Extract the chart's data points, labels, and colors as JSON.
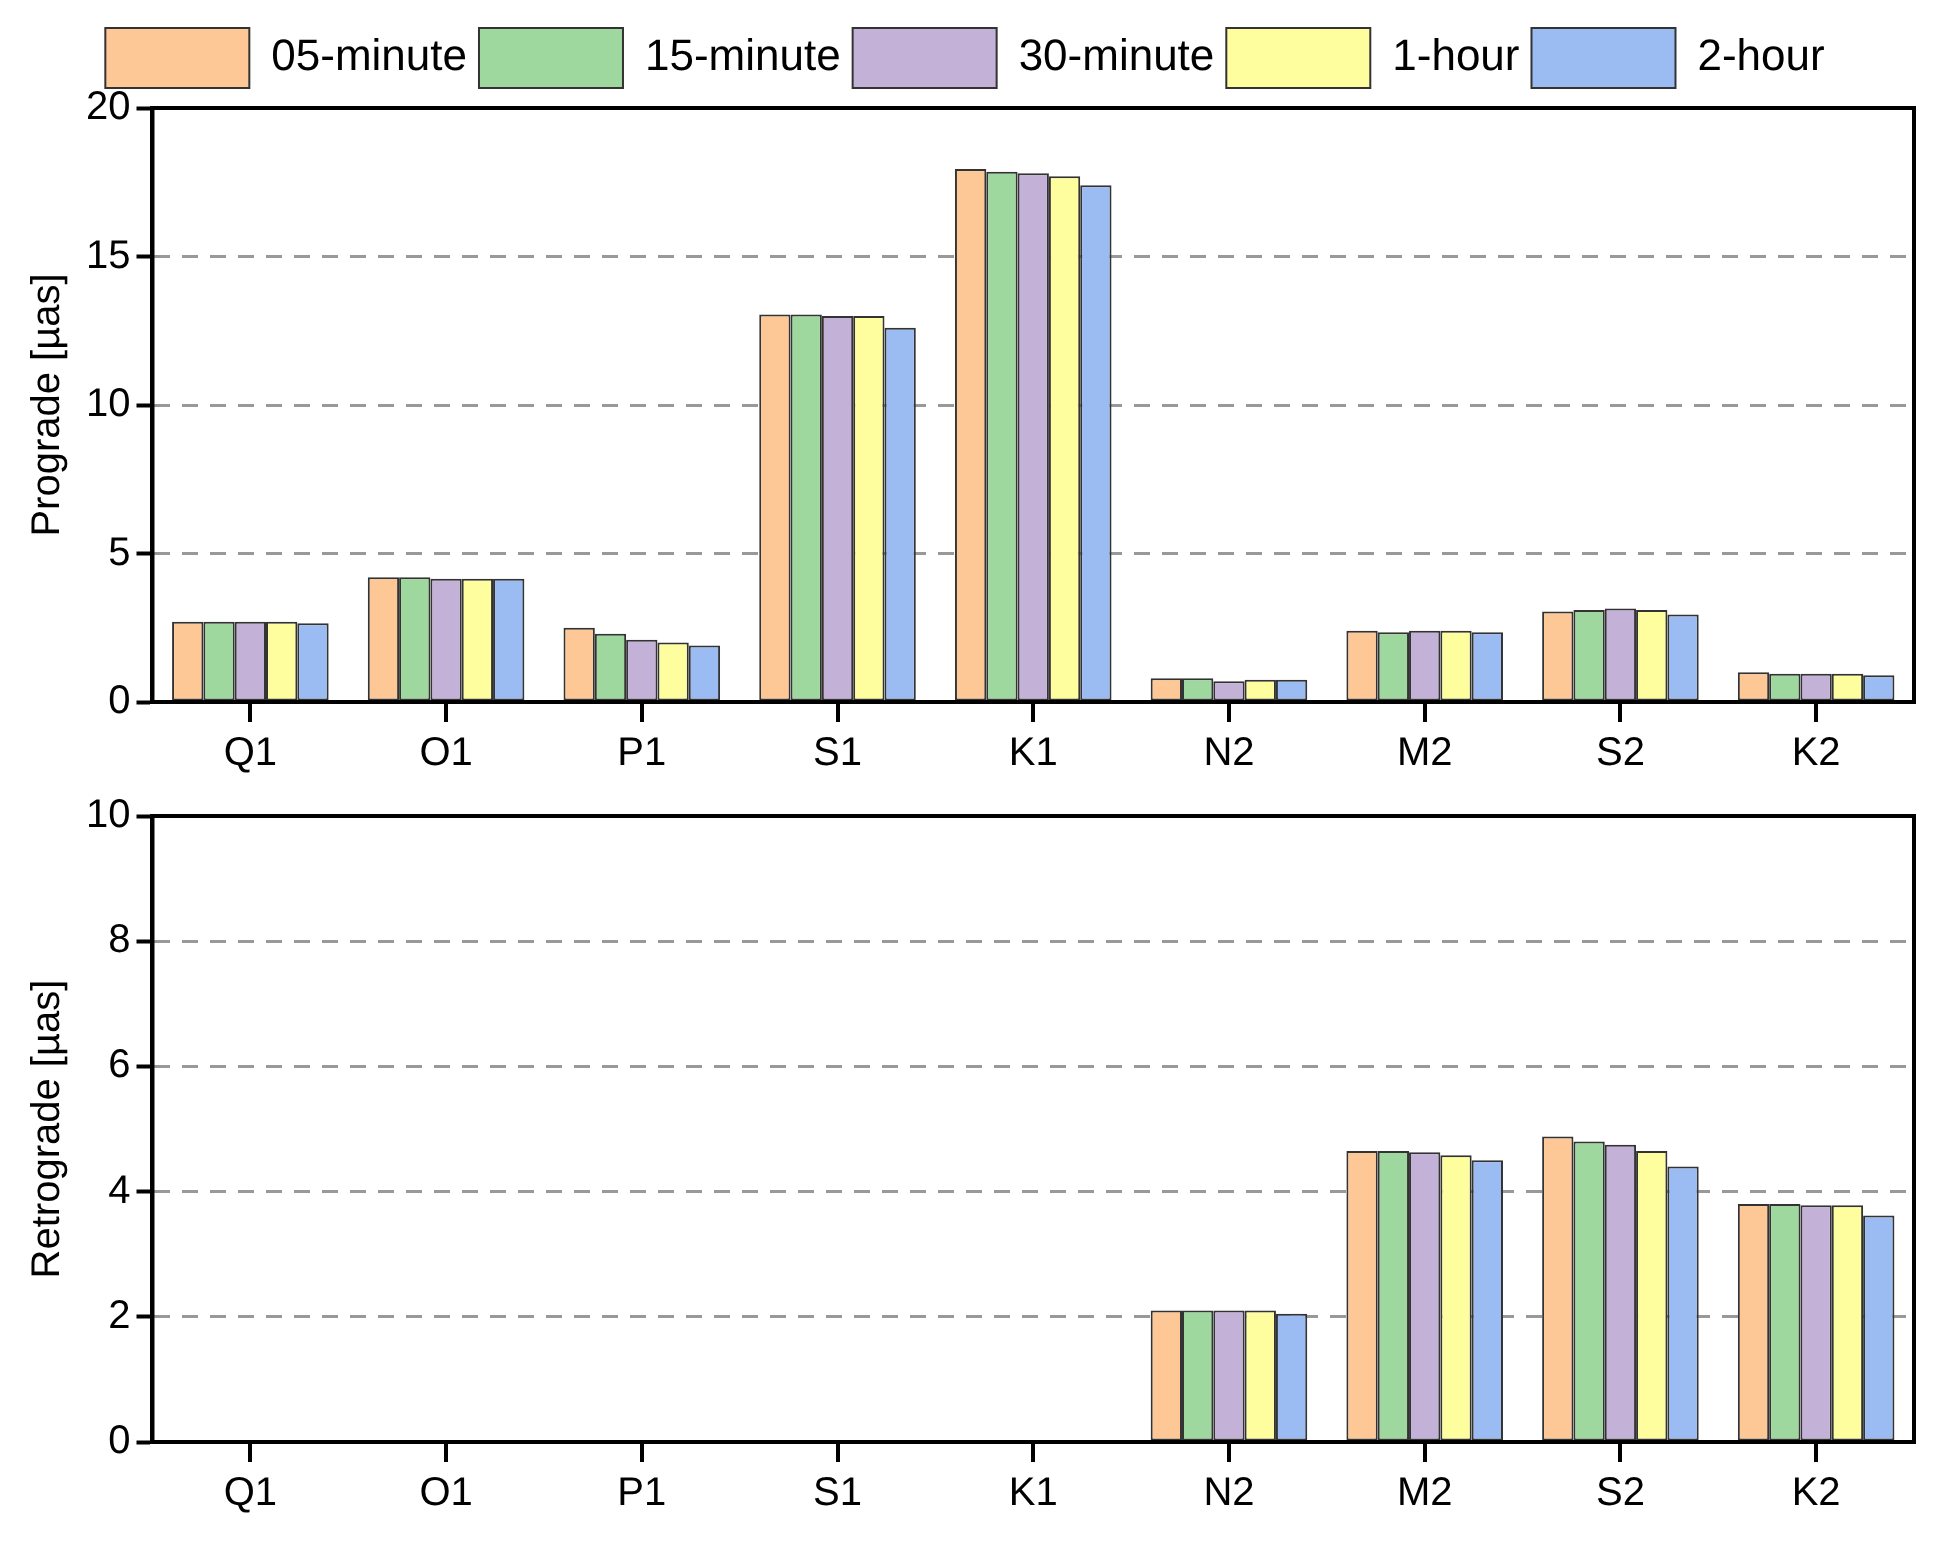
{
  "chart_data": [
    {
      "type": "bar",
      "ylabel": "Prograde [µas]",
      "categories": [
        "Q1",
        "O1",
        "P1",
        "S1",
        "K1",
        "N2",
        "M2",
        "S2",
        "K2"
      ],
      "ylim": [
        0,
        20
      ],
      "yticks": [
        0,
        5,
        10,
        15,
        20
      ],
      "grid": "y",
      "legend": "top",
      "series": [
        {
          "name": "05-minute",
          "color": "#fdc896",
          "values": [
            2.7,
            4.2,
            2.5,
            13.05,
            17.95,
            0.8,
            2.4,
            3.05,
            1.0
          ]
        },
        {
          "name": "15-minute",
          "color": "#9ed89e",
          "values": [
            2.7,
            4.2,
            2.3,
            13.05,
            17.85,
            0.8,
            2.35,
            3.1,
            0.95
          ]
        },
        {
          "name": "30-minute",
          "color": "#c3b1d8",
          "values": [
            2.7,
            4.15,
            2.1,
            13.0,
            17.8,
            0.7,
            2.4,
            3.15,
            0.95
          ]
        },
        {
          "name": "1-hour",
          "color": "#fefe9e",
          "values": [
            2.7,
            4.15,
            2.0,
            13.0,
            17.7,
            0.75,
            2.4,
            3.1,
            0.95
          ]
        },
        {
          "name": "2-hour",
          "color": "#9bbbf3",
          "values": [
            2.65,
            4.15,
            1.9,
            12.6,
            17.4,
            0.75,
            2.35,
            2.95,
            0.9
          ]
        }
      ]
    },
    {
      "type": "bar",
      "ylabel": "Retrograde [µas]",
      "categories": [
        "Q1",
        "O1",
        "P1",
        "S1",
        "K1",
        "N2",
        "M2",
        "S2",
        "K2"
      ],
      "ylim": [
        0,
        10
      ],
      "yticks": [
        0,
        2,
        4,
        6,
        8,
        10
      ],
      "grid": "y",
      "legend": false,
      "series": [
        {
          "color": "#fdc896",
          "values": [
            null,
            null,
            null,
            null,
            null,
            2.1,
            4.65,
            4.88,
            3.8
          ]
        },
        {
          "color": "#9ed89e",
          "values": [
            null,
            null,
            null,
            null,
            null,
            2.1,
            4.65,
            4.8,
            3.8
          ]
        },
        {
          "color": "#c3b1d8",
          "values": [
            null,
            null,
            null,
            null,
            null,
            2.1,
            4.63,
            4.75,
            3.78
          ]
        },
        {
          "color": "#fefe9e",
          "values": [
            null,
            null,
            null,
            null,
            null,
            2.1,
            4.58,
            4.65,
            3.78
          ]
        },
        {
          "color": "#9bbbf3",
          "values": [
            null,
            null,
            null,
            null,
            null,
            2.05,
            4.5,
            4.4,
            3.62
          ]
        }
      ]
    }
  ]
}
